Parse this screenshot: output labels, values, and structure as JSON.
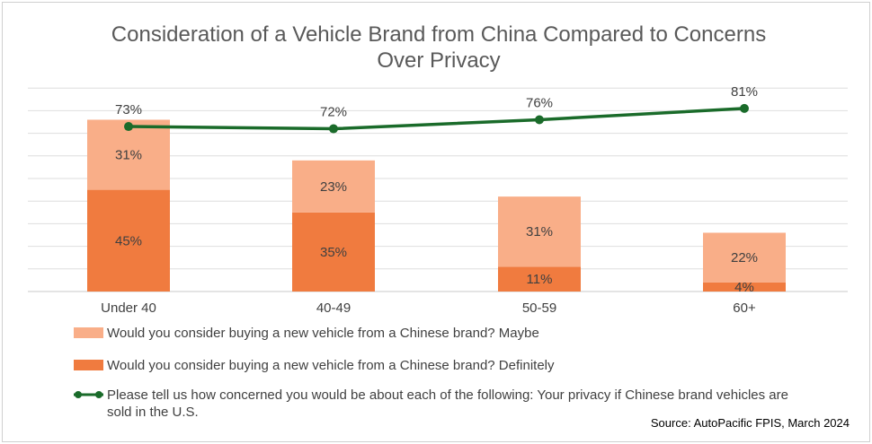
{
  "chart_data": {
    "type": "bar",
    "stacked": true,
    "title_lines": [
      "Consideration of a Vehicle Brand from China Compared to Concerns",
      "Over Privacy"
    ],
    "categories": [
      "Under 40",
      "40-49",
      "50-59",
      "60+"
    ],
    "series": [
      {
        "name": "Would you consider buying a new vehicle from a Chinese brand? Definitely",
        "type": "bar",
        "values": [
          45,
          35,
          11,
          4
        ],
        "labels": [
          "45%",
          "35%",
          "11%",
          "4%"
        ],
        "color": "#f07b3f"
      },
      {
        "name": "Would you consider buying a new vehicle from a Chinese brand? Maybe",
        "type": "bar",
        "values": [
          31,
          23,
          31,
          22
        ],
        "labels": [
          "31%",
          "23%",
          "31%",
          "22%"
        ],
        "color": "#f9ae88"
      },
      {
        "name": "Please tell us how concerned you would be about each of the following: Your privacy if Chinese brand vehicles are sold in the U.S.",
        "name_lines": [
          "Please tell us how concerned you would be about each of the following: Your privacy if Chinese brand vehicles are",
          "sold in the U.S."
        ],
        "type": "line",
        "values": [
          73,
          72,
          76,
          81
        ],
        "labels": [
          "73%",
          "72%",
          "76%",
          "81%"
        ],
        "color": "#1a6b2a"
      }
    ],
    "ylim": [
      0,
      90
    ],
    "grid": true,
    "legend_placement": "bottom",
    "source": "Source: AutoPacific FPIS, March 2024"
  }
}
